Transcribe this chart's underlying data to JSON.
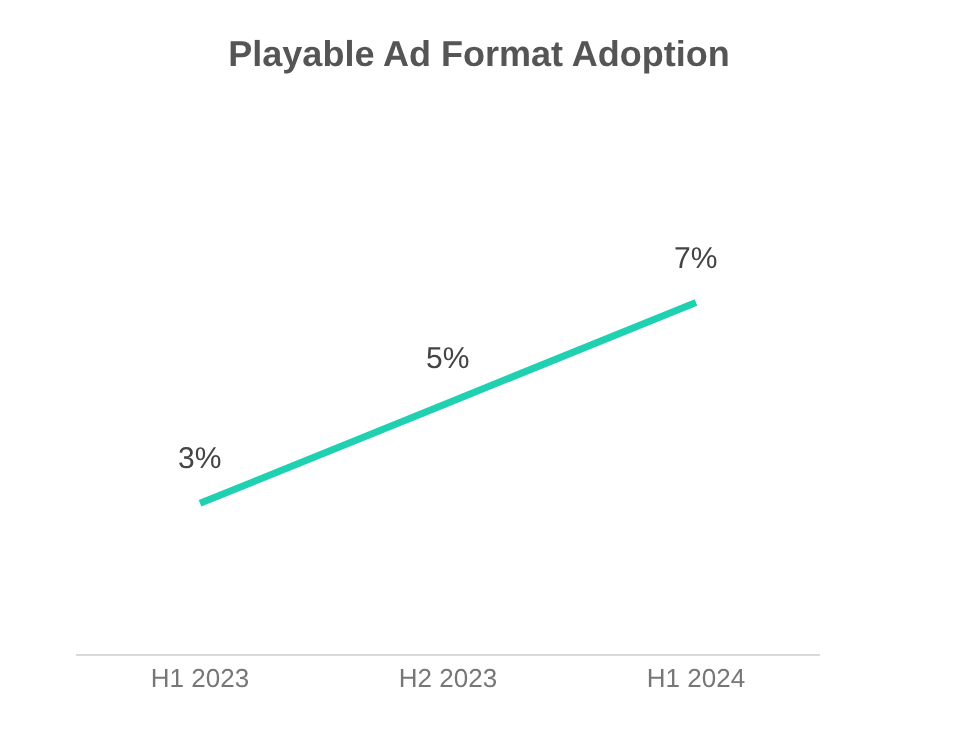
{
  "chart_data": {
    "type": "line",
    "title": "Playable Ad Format Adoption",
    "categories": [
      "H1 2023",
      "H2 2023",
      "H1 2024"
    ],
    "series": [
      {
        "color": "#1fd1b0",
        "values": [
          3,
          5,
          7
        ],
        "value_labels": [
          "3%",
          "5%",
          "7%"
        ]
      }
    ],
    "marker": "none",
    "line_style": "solid",
    "grid": false
  }
}
